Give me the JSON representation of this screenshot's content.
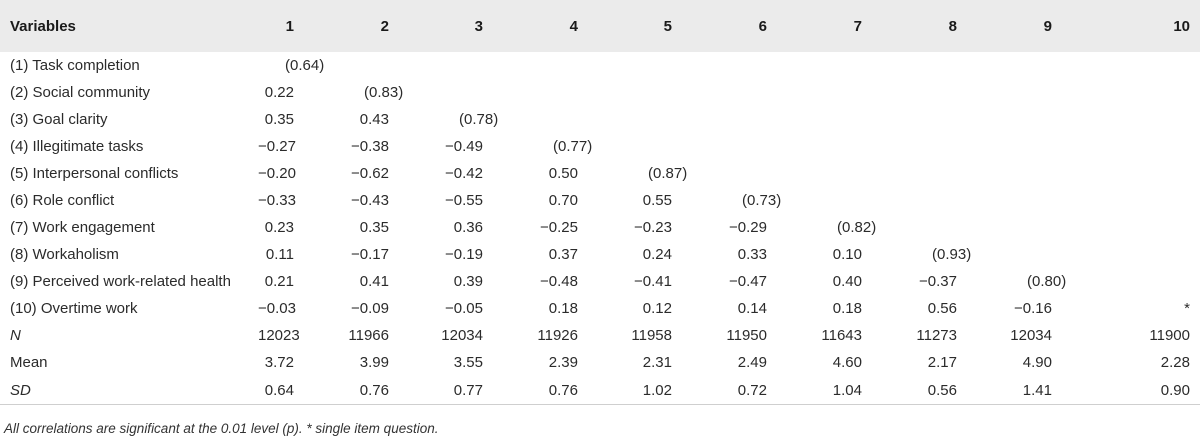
{
  "header": [
    "Variables",
    "1",
    "2",
    "3",
    "4",
    "5",
    "6",
    "7",
    "8",
    "9",
    "10"
  ],
  "rows": [
    {
      "label": "(1) Task completion",
      "italic": false,
      "cells": [
        "(0.64)",
        "",
        "",
        "",
        "",
        "",
        "",
        "",
        "",
        ""
      ]
    },
    {
      "label": "(2) Social community",
      "italic": false,
      "cells": [
        "0.22",
        "(0.83)",
        "",
        "",
        "",
        "",
        "",
        "",
        "",
        ""
      ]
    },
    {
      "label": "(3) Goal clarity",
      "italic": false,
      "cells": [
        "0.35",
        "0.43",
        "(0.78)",
        "",
        "",
        "",
        "",
        "",
        "",
        ""
      ]
    },
    {
      "label": "(4) Illegitimate tasks",
      "italic": false,
      "cells": [
        "−0.27",
        "−0.38",
        "−0.49",
        "(0.77)",
        "",
        "",
        "",
        "",
        "",
        ""
      ]
    },
    {
      "label": "(5) Interpersonal conflicts",
      "italic": false,
      "cells": [
        "−0.20",
        "−0.62",
        "−0.42",
        "0.50",
        "(0.87)",
        "",
        "",
        "",
        "",
        ""
      ]
    },
    {
      "label": "(6) Role conflict",
      "italic": false,
      "cells": [
        "−0.33",
        "−0.43",
        "−0.55",
        "0.70",
        "0.55",
        "(0.73)",
        "",
        "",
        "",
        ""
      ]
    },
    {
      "label": "(7) Work engagement",
      "italic": false,
      "cells": [
        "0.23",
        "0.35",
        "0.36",
        "−0.25",
        "−0.23",
        "−0.29",
        "(0.82)",
        "",
        "",
        ""
      ]
    },
    {
      "label": "(8) Workaholism",
      "italic": false,
      "cells": [
        "0.11",
        "−0.17",
        "−0.19",
        "0.37",
        "0.24",
        "0.33",
        "0.10",
        "(0.93)",
        "",
        ""
      ]
    },
    {
      "label": "(9) Perceived work-related health",
      "italic": false,
      "cells": [
        "0.21",
        "0.41",
        "0.39",
        "−0.48",
        "−0.41",
        "−0.47",
        "0.40",
        "−0.37",
        "(0.80)",
        ""
      ]
    },
    {
      "label": "(10) Overtime work",
      "italic": false,
      "cells": [
        "−0.03",
        "−0.09",
        "−0.05",
        "0.18",
        "0.12",
        "0.14",
        "0.18",
        "0.56",
        "−0.16",
        "*"
      ]
    },
    {
      "label": "N",
      "italic": true,
      "cells": [
        "12023",
        "11966",
        "12034",
        "11926",
        "11958",
        "11950",
        "11643",
        "11273",
        "12034",
        "11900"
      ]
    },
    {
      "label": "Mean",
      "italic": false,
      "cells": [
        "3.72",
        "3.99",
        "3.55",
        "2.39",
        "2.31",
        "2.49",
        "4.60",
        "2.17",
        "4.90",
        "2.28"
      ]
    },
    {
      "label": "SD",
      "italic": true,
      "cells": [
        "0.64",
        "0.76",
        "0.77",
        "0.76",
        "1.02",
        "0.72",
        "1.04",
        "0.56",
        "1.41",
        "0.90"
      ]
    }
  ],
  "note": "All correlations are significant at the 0.01 level (p). * single item question."
}
